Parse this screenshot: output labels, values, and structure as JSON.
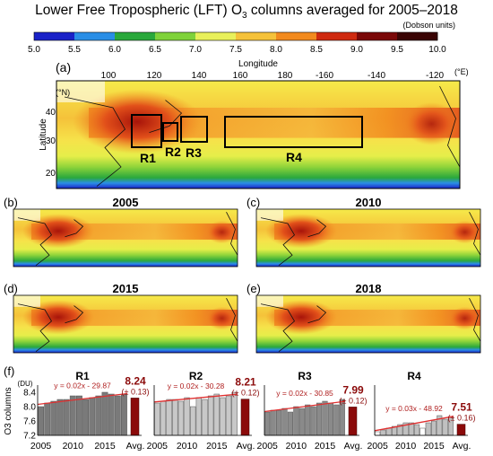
{
  "title": {
    "pre": "Lower Free Tropospheric (LFT) O",
    "sub": "3",
    "post": " columns averaged for 2005–2018"
  },
  "colorbar": {
    "units": "(Dobson units)",
    "ticks": [
      "5.0",
      "5.5",
      "6.0",
      "6.5",
      "7.0",
      "7.5",
      "8.0",
      "8.5",
      "9.0",
      "9.5",
      "10.0"
    ],
    "colors": [
      "#1a22c8",
      "#2a8ee6",
      "#2aa83c",
      "#7fd23a",
      "#e8f05a",
      "#f5c23a",
      "#f28a1e",
      "#cf2a10",
      "#7a0808",
      "#3a0404"
    ]
  },
  "map_a": {
    "label": "(a)",
    "xlabel": "Longitude",
    "xunit": "(°E)",
    "xticks": [
      "100",
      "120",
      "140",
      "160",
      "180",
      "-160",
      "-140",
      "-120"
    ],
    "ylabel": "Latitude",
    "yunit": "(°N)",
    "yticks": [
      "40",
      "30",
      "20"
    ],
    "regions": [
      "R1",
      "R2",
      "R3",
      "R4"
    ]
  },
  "maps": [
    {
      "label": "(b)",
      "year": "2005"
    },
    {
      "label": "(c)",
      "year": "2010"
    },
    {
      "label": "(d)",
      "year": "2015"
    },
    {
      "label": "(e)",
      "year": "2018"
    }
  ],
  "bars_label": "(f)",
  "bars_ylabel": "O3 columns",
  "bars_yunit": "(DU)",
  "chart_data": {
    "type": "bar",
    "ylabel": "O3 columns (DU)",
    "ylim": [
      7.2,
      8.6
    ],
    "yticks": [
      "8.4",
      "8.0",
      "7.6",
      "7.2"
    ],
    "xticks": [
      "2005",
      "2010",
      "2015",
      "Avg."
    ],
    "years": [
      2005,
      2006,
      2007,
      2008,
      2009,
      2010,
      2011,
      2012,
      2013,
      2014,
      2015,
      2016,
      2017,
      2018
    ],
    "series": [
      {
        "name": "R1",
        "values": [
          8.0,
          8.1,
          8.15,
          8.2,
          8.2,
          8.3,
          8.3,
          8.2,
          8.25,
          8.3,
          8.4,
          8.35,
          8.3,
          8.35
        ],
        "avg": "8.24",
        "err": "(± 0.13)",
        "fit": "y = 0.02x - 29.87"
      },
      {
        "name": "R2",
        "values": [
          8.1,
          8.15,
          8.2,
          8.2,
          8.15,
          8.25,
          8.0,
          8.25,
          8.2,
          8.3,
          8.35,
          8.25,
          8.3,
          8.4
        ],
        "avg": "8.21",
        "err": "(± 0.12)",
        "fit": "y = 0.02x - 30.28"
      },
      {
        "name": "R3",
        "values": [
          7.85,
          7.9,
          7.9,
          7.95,
          7.85,
          8.0,
          7.95,
          8.05,
          8.0,
          8.1,
          8.15,
          8.1,
          8.05,
          8.2
        ],
        "avg": "7.99",
        "err": "(± 0.12)",
        "fit": "y = 0.02x - 30.85"
      },
      {
        "name": "R4",
        "values": [
          7.3,
          7.35,
          7.4,
          7.45,
          7.5,
          7.55,
          7.55,
          7.5,
          7.4,
          7.55,
          7.6,
          7.75,
          7.65,
          7.7
        ],
        "avg": "7.51",
        "err": "(± 0.16)",
        "fit": "y = 0.03x - 48.92"
      }
    ]
  }
}
